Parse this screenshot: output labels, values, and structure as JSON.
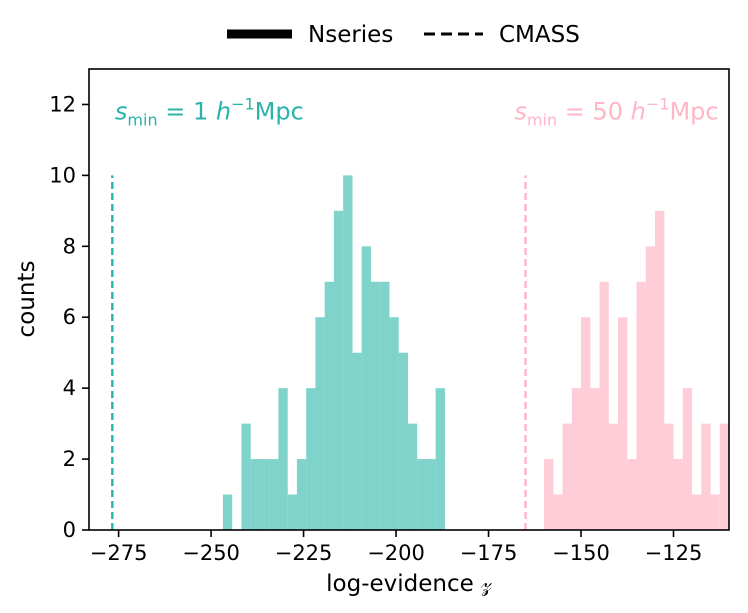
{
  "chart_data": {
    "type": "bar",
    "xlabel": "log-evidence 𝓏",
    "ylabel": "counts",
    "xlim": [
      -283,
      -110
    ],
    "ylim": [
      0,
      13
    ],
    "xticks": [
      -275,
      -250,
      -225,
      -200,
      -175,
      -150,
      -125
    ],
    "xtick_labels": [
      "−275",
      "−250",
      "−225",
      "−200",
      "−175",
      "−150",
      "−125"
    ],
    "yticks": [
      0,
      2,
      4,
      6,
      8,
      10,
      12
    ],
    "ytick_labels": [
      "0",
      "2",
      "4",
      "6",
      "8",
      "10",
      "12"
    ],
    "grid": false,
    "legend": {
      "placement": "top-center-outside",
      "entries": [
        {
          "label": "Nseries",
          "style": "solid"
        },
        {
          "label": "CMASS",
          "style": "dashed"
        }
      ]
    },
    "series": [
      {
        "color": "#7fd3cb",
        "bin_width": 2.52,
        "bins": [
          {
            "x0": -246.8,
            "count": 1
          },
          {
            "x0": -241.8,
            "count": 3
          },
          {
            "x0": -239.3,
            "count": 2
          },
          {
            "x0": -236.8,
            "count": 2
          },
          {
            "x0": -234.3,
            "count": 2
          },
          {
            "x0": -231.8,
            "count": 4
          },
          {
            "x0": -229.3,
            "count": 1
          },
          {
            "x0": -226.8,
            "count": 2
          },
          {
            "x0": -224.3,
            "count": 4
          },
          {
            "x0": -221.8,
            "count": 6
          },
          {
            "x0": -219.3,
            "count": 7
          },
          {
            "x0": -216.8,
            "count": 9
          },
          {
            "x0": -214.3,
            "count": 10
          },
          {
            "x0": -211.8,
            "count": 5
          },
          {
            "x0": -209.3,
            "count": 8
          },
          {
            "x0": -206.8,
            "count": 7
          },
          {
            "x0": -204.3,
            "count": 7
          },
          {
            "x0": -201.8,
            "count": 6
          },
          {
            "x0": -199.3,
            "count": 5
          },
          {
            "x0": -196.8,
            "count": 3
          },
          {
            "x0": -194.3,
            "count": 2
          },
          {
            "x0": -191.8,
            "count": 2
          },
          {
            "x0": -189.3,
            "count": 4
          }
        ]
      },
      {
        "color": "#ffcdd8",
        "bin_width": 2.52,
        "bins": [
          {
            "x0": -160.0,
            "count": 2
          },
          {
            "x0": -157.5,
            "count": 1
          },
          {
            "x0": -155.0,
            "count": 3
          },
          {
            "x0": -152.5,
            "count": 4
          },
          {
            "x0": -150.0,
            "count": 6
          },
          {
            "x0": -147.5,
            "count": 4
          },
          {
            "x0": -145.0,
            "count": 7
          },
          {
            "x0": -142.5,
            "count": 3
          },
          {
            "x0": -140.0,
            "count": 6
          },
          {
            "x0": -137.5,
            "count": 2
          },
          {
            "x0": -135.0,
            "count": 7
          },
          {
            "x0": -132.5,
            "count": 8
          },
          {
            "x0": -130.0,
            "count": 9
          },
          {
            "x0": -127.5,
            "count": 3
          },
          {
            "x0": -125.0,
            "count": 2
          },
          {
            "x0": -122.5,
            "count": 4
          },
          {
            "x0": -120.0,
            "count": 1
          },
          {
            "x0": -117.5,
            "count": 3
          },
          {
            "x0": -115.0,
            "count": 1
          },
          {
            "x0": -112.5,
            "count": 3
          }
        ]
      }
    ],
    "vlines": [
      {
        "x": -276.7,
        "ymax": 10,
        "color": "#2ab3aa",
        "style": "dashed"
      },
      {
        "x": -165.0,
        "ymax": 10,
        "color": "#ffb6c6",
        "style": "dashed"
      }
    ],
    "annotations": [
      {
        "label": "s_min = 1 h⁻¹Mpc",
        "s": "s",
        "sub": "min",
        "eq": " = 1 ",
        "h": "h",
        "sup": "−1",
        "unit": "Mpc",
        "color": "#2ab3aa",
        "x": -276,
        "y": 11.8
      },
      {
        "label": "s_min = 50 h⁻¹Mpc",
        "s": "s",
        "sub": "min",
        "eq": " = 50 ",
        "h": "h",
        "sup": "−1",
        "unit": "Mpc",
        "color": "#ffb6c6",
        "x": -168,
        "y": 11.8
      }
    ]
  }
}
